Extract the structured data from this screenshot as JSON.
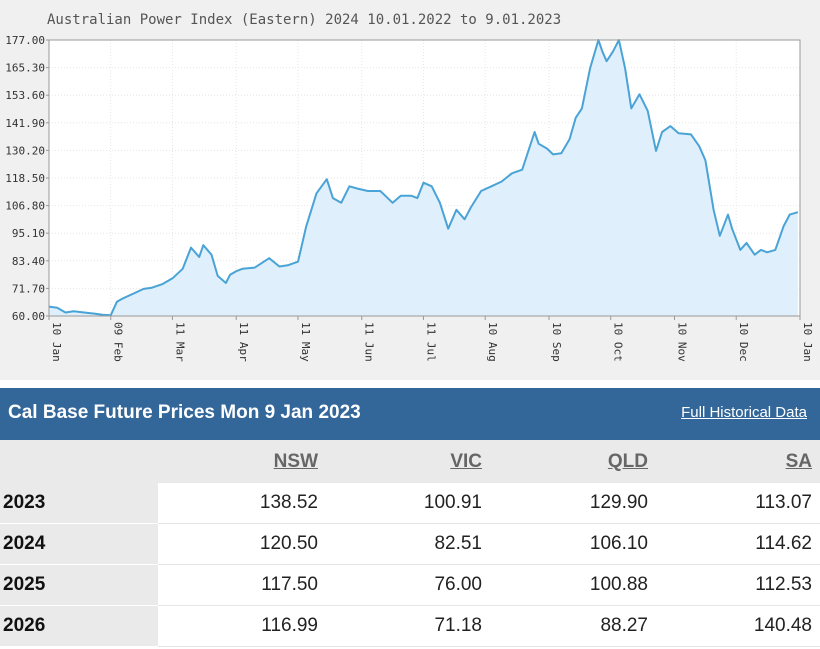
{
  "chart_data": {
    "type": "area",
    "title": "Australian Power Index (Eastern) 2024 10.01.2022 to 9.01.2023",
    "x_tick_labels": [
      "10 Jan",
      "09 Feb",
      "11 Mar",
      "11 Apr",
      "11 May",
      "11 Jun",
      "11 Jul",
      "10 Aug",
      "10 Sep",
      "10 Oct",
      "10 Nov",
      "10 Dec",
      "10 Jan"
    ],
    "y_tick_labels": [
      "177.00",
      "165.30",
      "153.60",
      "141.90",
      "130.20",
      "118.50",
      "106.80",
      "95.10",
      "83.40",
      "71.70",
      "60.00"
    ],
    "ylim": [
      60,
      177
    ],
    "grid": true,
    "fill_color": "#dff0fc",
    "line_color": "#4aa3d6",
    "series": [
      {
        "x": [
          "2022-01-10",
          "2022-01-14",
          "2022-01-18",
          "2022-01-22",
          "2022-01-27",
          "2022-02-01",
          "2022-02-05",
          "2022-02-09",
          "2022-02-12",
          "2022-02-15",
          "2022-02-20",
          "2022-02-25",
          "2022-03-01",
          "2022-03-06",
          "2022-03-11",
          "2022-03-16",
          "2022-03-20",
          "2022-03-24",
          "2022-03-26",
          "2022-03-30",
          "2022-04-02",
          "2022-04-06",
          "2022-04-08",
          "2022-04-11",
          "2022-04-14",
          "2022-04-20",
          "2022-04-27",
          "2022-05-02",
          "2022-05-06",
          "2022-05-11",
          "2022-05-15",
          "2022-05-20",
          "2022-05-25",
          "2022-05-28",
          "2022-06-01",
          "2022-06-05",
          "2022-06-09",
          "2022-06-14",
          "2022-06-20",
          "2022-06-26",
          "2022-06-30",
          "2022-07-05",
          "2022-07-08",
          "2022-07-11",
          "2022-07-15",
          "2022-07-19",
          "2022-07-23",
          "2022-07-27",
          "2022-07-31",
          "2022-08-03",
          "2022-08-08",
          "2022-08-13",
          "2022-08-18",
          "2022-08-23",
          "2022-08-28",
          "2022-09-03",
          "2022-09-05",
          "2022-09-09",
          "2022-09-12",
          "2022-09-16",
          "2022-09-20",
          "2022-09-23",
          "2022-09-26",
          "2022-09-30",
          "2022-10-04",
          "2022-10-06",
          "2022-10-08",
          "2022-10-11",
          "2022-10-14",
          "2022-10-17",
          "2022-10-20",
          "2022-10-24",
          "2022-10-28",
          "2022-11-01",
          "2022-11-04",
          "2022-11-08",
          "2022-11-12",
          "2022-11-18",
          "2022-11-22",
          "2022-11-25",
          "2022-11-29",
          "2022-12-02",
          "2022-12-06",
          "2022-12-08",
          "2022-12-12",
          "2022-12-15",
          "2022-12-19",
          "2022-12-22",
          "2022-12-25",
          "2022-12-29",
          "2023-01-02",
          "2023-01-05",
          "2023-01-09"
        ],
        "values": [
          64.0,
          63.5,
          61.5,
          62.0,
          61.5,
          61.0,
          60.5,
          60.3,
          66.0,
          67.5,
          69.5,
          71.5,
          72.0,
          73.5,
          76.0,
          80.0,
          89.0,
          85.0,
          90.0,
          86.0,
          77.0,
          74.0,
          77.5,
          79.0,
          80.0,
          80.5,
          84.5,
          81.0,
          81.5,
          83.0,
          98.0,
          112.0,
          118.0,
          110.0,
          108.0,
          115.0,
          114.0,
          113.0,
          113.0,
          108.0,
          111.0,
          111.0,
          110.0,
          116.5,
          115.0,
          108.0,
          97.0,
          105.0,
          101.0,
          106.0,
          113.0,
          115.0,
          117.0,
          120.5,
          122.0,
          138.0,
          133.0,
          131.0,
          128.5,
          129.0,
          135.0,
          144.0,
          148.0,
          165.0,
          177.0,
          172.0,
          168.0,
          172.0,
          177.0,
          165.0,
          148.0,
          154.0,
          147.0,
          130.0,
          138.0,
          140.5,
          137.5,
          137.0,
          132.0,
          126.0,
          105.0,
          94.0,
          103.0,
          97.0,
          88.0,
          91.0,
          86.0,
          88.0,
          87.0,
          88.0,
          98.0,
          103.0,
          104.0
        ]
      }
    ]
  },
  "prices": {
    "title": "Cal Base Future Prices Mon 9 Jan 2023",
    "link": "Full Historical Data",
    "headers": [
      "NSW",
      "VIC",
      "QLD",
      "SA"
    ],
    "rows": [
      {
        "year": "2023",
        "values": [
          "138.52",
          "100.91",
          "129.90",
          "113.07"
        ]
      },
      {
        "year": "2024",
        "values": [
          "120.50",
          "82.51",
          "106.10",
          "114.62"
        ]
      },
      {
        "year": "2025",
        "values": [
          "117.50",
          "76.00",
          "100.88",
          "112.53"
        ]
      },
      {
        "year": "2026",
        "values": [
          "116.99",
          "71.18",
          "88.27",
          "140.48"
        ]
      }
    ]
  }
}
